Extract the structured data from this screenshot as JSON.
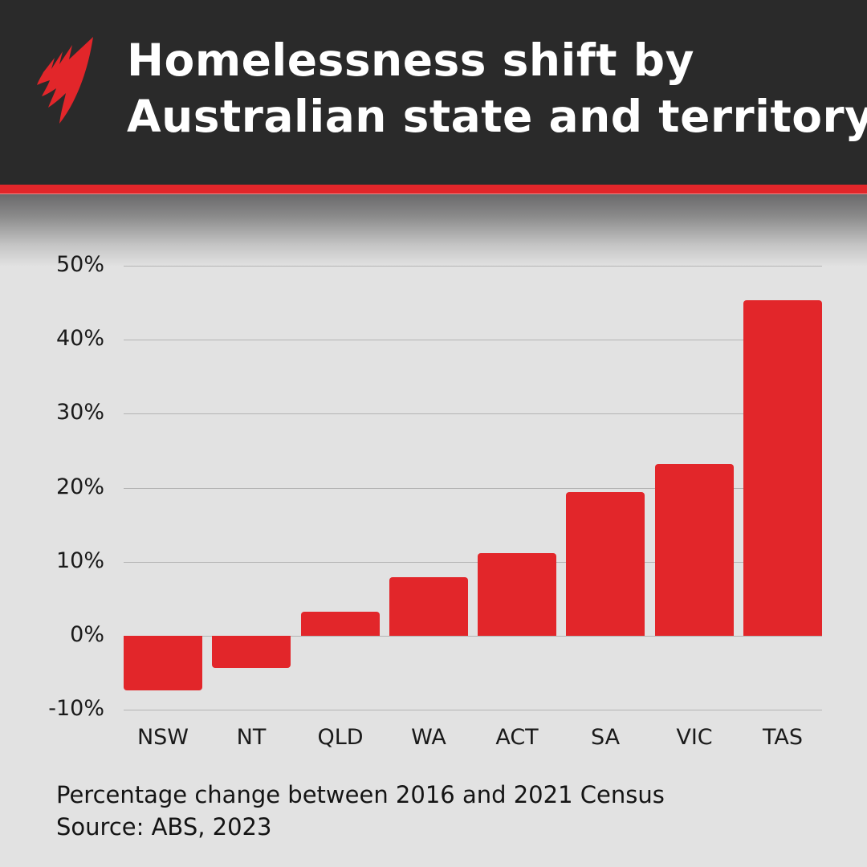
{
  "header": {
    "title_line1": "Homelessness shift by",
    "title_line2": "Australian state and territory",
    "logo_icon": "sbs-logo-icon",
    "colors": {
      "header_bg": "#2a2a2a",
      "accent": "#e2262a",
      "title_text": "#ffffff"
    }
  },
  "footer": {
    "note": "Percentage change between 2016 and 2021 Census",
    "source": "Source: ABS, 2023"
  },
  "chart_data": {
    "type": "bar",
    "title": "Homelessness shift by Australian state and territory",
    "subtitle": "Percentage change between 2016 and 2021 Census",
    "source": "Source: ABS, 2023",
    "xlabel": "",
    "ylabel": "",
    "categories": [
      "NSW",
      "NT",
      "QLD",
      "WA",
      "ACT",
      "SA",
      "VIC",
      "TAS"
    ],
    "values": [
      -7.4,
      -4.3,
      3.3,
      7.9,
      11.2,
      19.4,
      23.2,
      45.3
    ],
    "unit": "%",
    "ylim": [
      -10,
      50
    ],
    "yticks": [
      50,
      40,
      30,
      20,
      10,
      0,
      -10
    ],
    "ytick_labels": [
      "50%",
      "40%",
      "30%",
      "20%",
      "10%",
      "0%",
      "-10%"
    ],
    "grid": true,
    "legend": null,
    "bar_color": "#e2262a"
  }
}
